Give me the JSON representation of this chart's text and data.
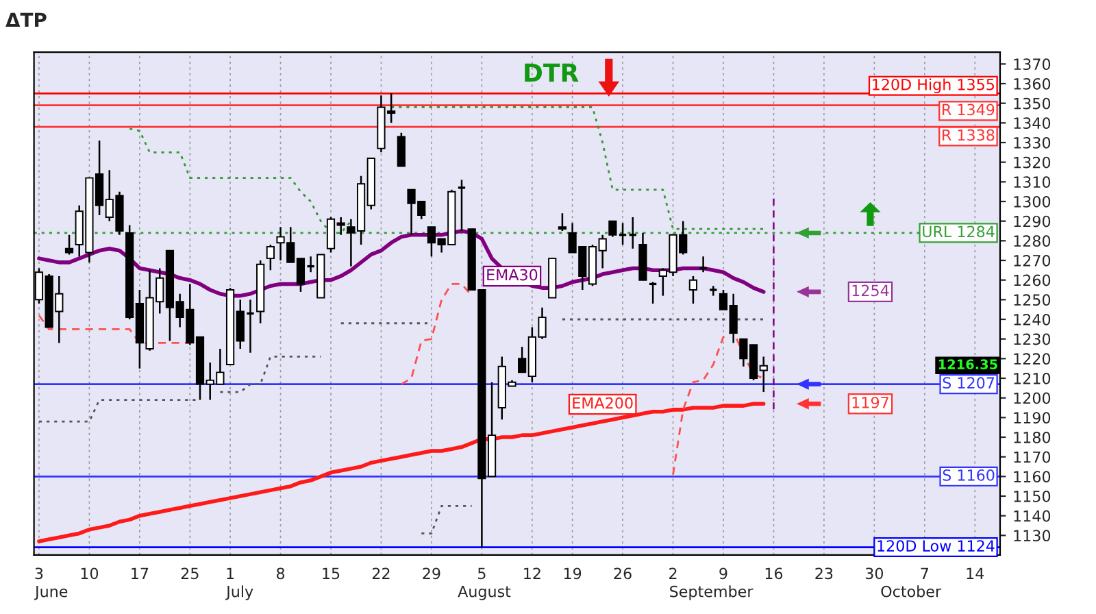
{
  "chart_data": {
    "type": "candlestick",
    "title": "ΔTP",
    "categories": [
      "3",
      null,
      null,
      null,
      null,
      "10",
      null,
      null,
      null,
      null,
      "17",
      null,
      null,
      null,
      null,
      "25",
      null,
      null,
      null,
      "1",
      null,
      null,
      null,
      null,
      "8",
      null,
      null,
      null,
      null,
      "15",
      null,
      null,
      null,
      null,
      "22",
      null,
      null,
      null,
      null,
      "29",
      null,
      null,
      null,
      null,
      "5",
      null,
      null,
      null,
      null,
      "12",
      null,
      null,
      null,
      "19",
      null,
      null,
      null,
      null,
      "26",
      null,
      null,
      null,
      null,
      "2",
      null,
      null,
      null,
      null,
      "9",
      null,
      null,
      null,
      null,
      "16",
      null,
      null,
      null,
      null,
      "23",
      null,
      null,
      null,
      null,
      "30",
      null,
      null,
      null,
      null,
      "7",
      null,
      null,
      null,
      null,
      "14",
      null,
      null
    ],
    "ohlc": [
      [
        1250,
        1266,
        1248,
        1264
      ],
      [
        1262,
        1263,
        1236,
        1236
      ],
      [
        1244,
        1262,
        1228,
        1253
      ],
      [
        1276,
        1283,
        1273,
        1274
      ],
      [
        1278,
        1298,
        1272,
        1295
      ],
      [
        1274,
        1312,
        1269,
        1312
      ],
      [
        1314,
        1331,
        1293,
        1298
      ],
      [
        1292,
        1316,
        1290,
        1301
      ],
      [
        1303,
        1305,
        1283,
        1285
      ],
      [
        1284,
        1288,
        1240,
        1241
      ],
      [
        1248,
        1255,
        1215,
        1228
      ],
      [
        1225,
        1265,
        1224,
        1251
      ],
      [
        1249,
        1266,
        1243,
        1261
      ],
      [
        1275,
        1275,
        1229,
        1246
      ],
      [
        1249,
        1253,
        1236,
        1241
      ],
      [
        1245,
        1258,
        1227,
        1228
      ],
      [
        1231,
        1231,
        1199,
        1207
      ],
      [
        1207,
        1218,
        1199,
        1209
      ],
      [
        1207,
        1225,
        1207,
        1213
      ],
      [
        1217,
        1256,
        1217,
        1255
      ],
      [
        1244,
        1250,
        1225,
        1229
      ],
      [
        1243,
        1250,
        1223,
        1243
      ],
      [
        1244,
        1270,
        1238,
        1268
      ],
      [
        1271,
        1278,
        1265,
        1277
      ],
      [
        1279,
        1287,
        1270,
        1282
      ],
      [
        1279,
        1287,
        1269,
        1269
      ],
      [
        1271,
        1271,
        1254,
        1258
      ],
      [
        1267,
        1272,
        1264,
        1267
      ],
      [
        1251,
        1273,
        1251,
        1273
      ],
      [
        1276,
        1292,
        1274,
        1291
      ],
      [
        1289,
        1292,
        1283,
        1288
      ],
      [
        1287,
        1291,
        1267,
        1284
      ],
      [
        1285,
        1313,
        1278,
        1309
      ],
      [
        1298,
        1322,
        1296,
        1322
      ],
      [
        1327,
        1354,
        1325,
        1348
      ],
      [
        1346,
        1355,
        1340,
        1345
      ],
      [
        1333,
        1335,
        1318,
        1318
      ],
      [
        1306,
        1306,
        1283,
        1299
      ],
      [
        1300,
        1300,
        1291,
        1293
      ],
      [
        1287,
        1287,
        1272,
        1279
      ],
      [
        1281,
        1281,
        1274,
        1278
      ],
      [
        1278,
        1306,
        1278,
        1305
      ],
      [
        1307,
        1311,
        1285,
        1307
      ],
      [
        1286,
        1286,
        1255,
        1255
      ],
      [
        1255,
        1255,
        1124,
        1159
      ],
      [
        1160,
        1208,
        1160,
        1181
      ],
      [
        1195,
        1221,
        1189,
        1216
      ],
      [
        1206,
        1209,
        1206,
        1208
      ],
      [
        1220,
        1226,
        1213,
        1213
      ],
      [
        1211,
        1236,
        1208,
        1231
      ],
      [
        1231,
        1246,
        1230,
        1241
      ],
      [
        1251,
        1271,
        1251,
        1271
      ],
      [
        1287,
        1294,
        1285,
        1286
      ],
      [
        1284,
        1289,
        1274,
        1274
      ],
      [
        1277,
        1277,
        1255,
        1262
      ],
      [
        1258,
        1278,
        1257,
        1277
      ],
      [
        1275,
        1283,
        1266,
        1281
      ],
      [
        1290,
        1290,
        1282,
        1283
      ],
      [
        1283,
        1289,
        1278,
        1283
      ],
      [
        1283,
        1292,
        1276,
        1283
      ],
      [
        1278,
        1284,
        1260,
        1260
      ],
      [
        1258,
        1259,
        1248,
        1258
      ],
      [
        1262,
        1266,
        1252,
        1265
      ],
      [
        1264,
        1283,
        1262,
        1283
      ],
      [
        1283,
        1290,
        1273,
        1274
      ],
      [
        1255,
        1262,
        1248,
        1260
      ],
      [
        1266,
        1272,
        1264,
        1266
      ],
      [
        1255,
        1257,
        1252,
        1255
      ],
      [
        1253,
        1255,
        1245,
        1245
      ],
      [
        1247,
        1253,
        1228,
        1233
      ],
      [
        1230,
        1230,
        1216,
        1220
      ],
      [
        1227,
        1227,
        1209,
        1210
      ],
      [
        1214,
        1221,
        1203,
        1216.35
      ],
      null,
      null,
      null,
      null,
      null,
      null,
      null,
      null,
      null,
      null,
      null,
      null,
      null,
      null,
      null,
      null,
      null,
      null,
      null,
      null,
      null,
      null,
      null
    ],
    "series": [
      {
        "type": "line",
        "name": "EMA30",
        "color": "#800080",
        "line_style": "solid",
        "values": [
          1271,
          1270,
          1269,
          1269,
          1271,
          1273,
          1275,
          1276,
          1275,
          1271,
          1266,
          1265,
          1264,
          1263,
          1261,
          1260,
          1258,
          1255,
          1253,
          1252,
          1252,
          1253,
          1255,
          1257,
          1258,
          1258,
          1258,
          1259,
          1260,
          1260,
          1262,
          1265,
          1269,
          1273,
          1275,
          1279,
          1282,
          1283,
          1283,
          1283,
          1283,
          1284,
          1285,
          1284,
          1281,
          1271,
          1266,
          1262,
          1259,
          1257,
          1256,
          1256,
          1257,
          1259,
          1260,
          1261,
          1263,
          1264,
          1265,
          1266,
          1266,
          1265,
          1265,
          1265,
          1266,
          1266,
          1266,
          1265,
          1264,
          1261,
          1259,
          1256,
          1254,
          null,
          null,
          null,
          null,
          null,
          null,
          null,
          null,
          null,
          null,
          null,
          null,
          null,
          null,
          null,
          null,
          null,
          null,
          null,
          null,
          null,
          null,
          null
        ]
      },
      {
        "type": "line",
        "name": "EMA200",
        "color": "#ff1a1a",
        "line_style": "solid",
        "values": [
          1127,
          1128,
          1129,
          1130,
          1131,
          1133,
          1134,
          1135,
          1137,
          1138,
          1140,
          1141,
          1142,
          1143,
          1144,
          1145,
          1146,
          1147,
          1148,
          1149,
          1150,
          1151,
          1152,
          1153,
          1154,
          1155,
          1157,
          1158,
          1160,
          1162,
          1163,
          1164,
          1165,
          1167,
          1168,
          1169,
          1170,
          1171,
          1172,
          1173,
          1173,
          1174,
          1175,
          1177,
          1179,
          1179,
          1180,
          1180,
          1181,
          1181,
          1182,
          1183,
          1184,
          1185,
          1186,
          1187,
          1188,
          1189,
          1190,
          1191,
          1192,
          1193,
          1193,
          1194,
          1194,
          1195,
          1195,
          1195,
          1196,
          1196,
          1196,
          1197,
          1197,
          null,
          null,
          null,
          null,
          null,
          null,
          null,
          null,
          null,
          null,
          null,
          null,
          null,
          null,
          null,
          null,
          null,
          null,
          null,
          null,
          null,
          null,
          null
        ]
      },
      {
        "type": "line",
        "color": "#339933",
        "line_style": "dotted",
        "values": [
          null,
          null,
          null,
          null,
          null,
          null,
          null,
          null,
          null,
          1337,
          1336,
          1325,
          1325,
          1325,
          1325,
          1312,
          1312,
          1312,
          1312,
          1312,
          1312,
          1312,
          1312,
          1312,
          1312,
          1312,
          1305,
          1300,
          1290,
          1284,
          1284,
          1290,
          null,
          null,
          null,
          1348,
          1348,
          1348,
          1348,
          1348,
          1348,
          1348,
          1348,
          1348,
          1348,
          1348,
          1348,
          1348,
          1348,
          1348,
          1348,
          1348,
          1348,
          1348,
          1348,
          1348,
          1330,
          1306,
          1306,
          1306,
          1306,
          1306,
          1306,
          1286,
          1286,
          1286,
          1286,
          1286,
          1286,
          1286,
          1286,
          1286,
          1286,
          null,
          null,
          null,
          null,
          null,
          null,
          null,
          null,
          null,
          null,
          null,
          null,
          null,
          null,
          null,
          null,
          null,
          null,
          null,
          null,
          null,
          null,
          null
        ]
      },
      {
        "type": "line",
        "color": "#ff5050",
        "line_style": "dashed",
        "values": [
          1242,
          1235,
          1235,
          1235,
          1235,
          1235,
          1235,
          1235,
          1235,
          1235,
          1228,
          1228,
          1228,
          1228,
          1228,
          1228,
          null,
          null,
          null,
          null,
          null,
          null,
          null,
          null,
          null,
          null,
          null,
          null,
          null,
          null,
          null,
          null,
          null,
          null,
          null,
          null,
          1207,
          1210,
          1229,
          1230,
          1250,
          1258,
          1258,
          1252,
          null,
          null,
          null,
          null,
          null,
          null,
          null,
          null,
          null,
          null,
          null,
          null,
          null,
          null,
          null,
          null,
          null,
          null,
          null,
          1161,
          1194,
          1208,
          1209,
          1217,
          1231,
          1234,
          1222,
          1212,
          1210,
          null,
          null,
          null,
          null,
          null,
          null,
          null,
          null,
          null,
          null,
          null,
          null,
          null,
          null,
          null,
          null,
          null,
          null,
          null,
          null,
          null,
          null,
          null
        ]
      },
      {
        "type": "line",
        "color": "#555555",
        "line_style": "dotted",
        "values": [
          1188,
          1188,
          1188,
          1188,
          1188,
          1188,
          1199,
          1199,
          1199,
          1199,
          1199,
          1199,
          1199,
          1199,
          1199,
          1199,
          1199,
          null,
          1203,
          1203,
          1203,
          1207,
          1207,
          1221,
          1221,
          1221,
          1221,
          1221,
          1221,
          null,
          1238,
          1238,
          1238,
          1238,
          1238,
          1238,
          1238,
          1238,
          1238,
          1238,
          null,
          null,
          null,
          null,
          null,
          null,
          null,
          null,
          null,
          null,
          null,
          null,
          1240,
          1240,
          1240,
          1240,
          1240,
          1240,
          1240,
          1240,
          1240,
          1240,
          1240,
          1240,
          1240,
          1240,
          1240,
          1240,
          1240,
          1240,
          1240,
          1240,
          1240,
          null,
          null,
          null,
          null,
          null,
          null,
          null,
          null,
          null,
          null,
          null,
          null,
          null,
          null,
          null,
          null,
          null,
          null,
          null,
          null,
          null,
          null,
          null
        ]
      },
      {
        "type": "line",
        "color": "#555555",
        "line_style": "dotted",
        "values": [
          null,
          null,
          null,
          null,
          null,
          null,
          null,
          null,
          null,
          null,
          null,
          null,
          null,
          null,
          null,
          null,
          null,
          null,
          null,
          null,
          null,
          null,
          null,
          null,
          null,
          null,
          null,
          null,
          null,
          null,
          null,
          null,
          null,
          null,
          null,
          null,
          null,
          null,
          1131,
          1131,
          1145,
          1145,
          1145,
          1145,
          null,
          null,
          null,
          null,
          null,
          null,
          null,
          null,
          null,
          null,
          null,
          null,
          null,
          null,
          null,
          null,
          null,
          null,
          null,
          null,
          null,
          null,
          null,
          null,
          null,
          null,
          null,
          null,
          null,
          null,
          null,
          null,
          null,
          null,
          null,
          null,
          null,
          null,
          null,
          null,
          null,
          null,
          null,
          null,
          null,
          null,
          null,
          null,
          null,
          null,
          null,
          null
        ]
      }
    ],
    "ylim": [
      1120,
      1376
    ],
    "yticks": [
      1130,
      1140,
      1150,
      1160,
      1170,
      1180,
      1190,
      1200,
      1210,
      1220,
      1230,
      1240,
      1250,
      1260,
      1270,
      1280,
      1290,
      1300,
      1310,
      1320,
      1330,
      1340,
      1350,
      1360,
      1370
    ],
    "ref_lines": [
      {
        "axis": "y",
        "value": 1355,
        "label": "120D High 1355",
        "color": "#ff0000",
        "line_style": "solid"
      },
      {
        "axis": "y",
        "value": 1349,
        "label": "R 1349",
        "color": "#ff3333",
        "line_style": "solid"
      },
      {
        "axis": "y",
        "value": 1338,
        "label": "R 1338",
        "color": "#ff3333",
        "line_style": "solid"
      },
      {
        "axis": "y",
        "value": 1284,
        "label": "URL 1284",
        "color": "#33a033",
        "line_style": "dotted"
      },
      {
        "axis": "y",
        "value": 1207,
        "label": "S 1207",
        "color": "#3333ff",
        "line_style": "solid"
      },
      {
        "axis": "y",
        "value": 1160,
        "label": "S 1160",
        "color": "#3333ff",
        "line_style": "solid"
      },
      {
        "axis": "y",
        "value": 1124,
        "label": "120D Low 1124",
        "color": "#0000ff",
        "line_style": "solid"
      },
      {
        "axis": "x",
        "value": "16",
        "color": "#800080",
        "line_style": "dashed"
      }
    ],
    "annotations": [
      "DTR",
      {
        "text": "1254",
        "y": 1254
      },
      {
        "text": "1197",
        "y": 1197
      },
      "1216.35",
      "June",
      "July",
      "August",
      "September",
      "October"
    ],
    "grid": "x",
    "legend": false,
    "marker": "none"
  }
}
